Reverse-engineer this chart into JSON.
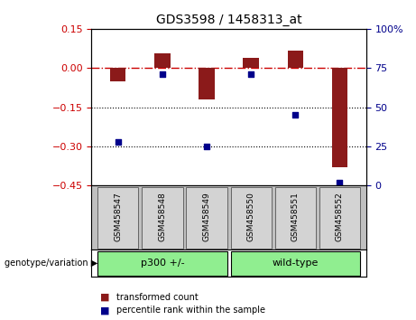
{
  "title": "GDS3598 / 1458313_at",
  "samples": [
    "GSM458547",
    "GSM458548",
    "GSM458549",
    "GSM458550",
    "GSM458551",
    "GSM458552"
  ],
  "bar_values": [
    -0.05,
    0.055,
    -0.12,
    0.04,
    0.065,
    -0.38
  ],
  "percentile_values": [
    28,
    71,
    25,
    71,
    45,
    2
  ],
  "bar_color": "#8B1A1A",
  "dot_color": "#00008B",
  "left_ylim": [
    -0.45,
    0.15
  ],
  "right_ylim": [
    0,
    100
  ],
  "left_yticks": [
    0.15,
    0,
    -0.15,
    -0.3,
    -0.45
  ],
  "right_yticks": [
    100,
    75,
    50,
    25,
    0
  ],
  "hline_y": 0,
  "hline_color": "#cc0000",
  "hline_style": "-.",
  "dotted_lines": [
    -0.15,
    -0.3
  ],
  "groups": [
    {
      "label": "p300 +/-",
      "indices": [
        0,
        1,
        2
      ],
      "color": "#90EE90"
    },
    {
      "label": "wild-type",
      "indices": [
        3,
        4,
        5
      ],
      "color": "#90EE90"
    }
  ],
  "group_label": "genotype/variation",
  "legend_bar_label": "transformed count",
  "legend_dot_label": "percentile rank within the sample",
  "sample_box_color": "#d3d3d3",
  "bar_width": 0.35
}
